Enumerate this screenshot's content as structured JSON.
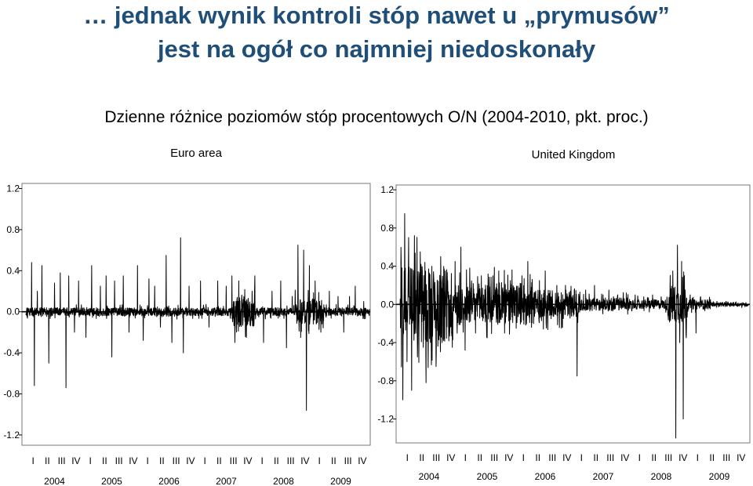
{
  "title": {
    "line1": "… jednak wynik kontroli stóp nawet u „prymusów”",
    "line2": "jest na ogół co najmniej niedoskonały"
  },
  "subtitle": "Dzienne różnice poziomów stóp procentowych O/N (2004-2010, pkt. proc.)",
  "colors": {
    "title": "#1f4e79",
    "series": "#000000",
    "axis": "#000000"
  },
  "chart_data": [
    {
      "type": "line",
      "title": "Euro area",
      "ylim": [
        -1.3,
        1.25
      ],
      "yticks": [
        1.2,
        0.8,
        0.4,
        0.0,
        -0.4,
        -0.8,
        -1.2
      ],
      "ytick_labels": [
        "1.2",
        "0.8",
        "0.4",
        "0.0",
        "-0.4",
        "-0.8",
        "-1.2"
      ],
      "xlim": [
        2004.0,
        2010.0
      ],
      "quarter_labels": [
        "I",
        "II",
        "III",
        "IV",
        "I",
        "II",
        "III",
        "IV",
        "I",
        "II",
        "III",
        "IV",
        "I",
        "II",
        "III",
        "IV",
        "I",
        "II",
        "III",
        "IV",
        "I",
        "II",
        "III",
        "IV"
      ],
      "year_labels": [
        "2004",
        "2005",
        "2006",
        "2007",
        "2008",
        "2009"
      ],
      "noise": {
        "base_amplitude": 0.04,
        "turbulent_periods": [
          [
            2007.6,
            2008.0,
            0.15
          ],
          [
            2008.7,
            2009.2,
            0.12
          ]
        ]
      },
      "spikes": [
        [
          2004.02,
          -0.05
        ],
        [
          2004.1,
          0.48
        ],
        [
          2004.15,
          -0.72
        ],
        [
          2004.2,
          0.2
        ],
        [
          2004.28,
          0.45
        ],
        [
          2004.4,
          -0.5
        ],
        [
          2004.5,
          0.28
        ],
        [
          2004.6,
          0.38
        ],
        [
          2004.7,
          -0.74
        ],
        [
          2004.75,
          0.35
        ],
        [
          2004.85,
          -0.2
        ],
        [
          2004.92,
          0.3
        ],
        [
          2005.05,
          -0.25
        ],
        [
          2005.15,
          0.45
        ],
        [
          2005.3,
          0.25
        ],
        [
          2005.4,
          0.35
        ],
        [
          2005.5,
          -0.44
        ],
        [
          2005.55,
          0.3
        ],
        [
          2005.7,
          0.35
        ],
        [
          2005.8,
          -0.2
        ],
        [
          2005.95,
          0.45
        ],
        [
          2006.05,
          -0.28
        ],
        [
          2006.15,
          0.32
        ],
        [
          2006.25,
          0.25
        ],
        [
          2006.35,
          -0.15
        ],
        [
          2006.45,
          0.55
        ],
        [
          2006.55,
          -0.3
        ],
        [
          2006.7,
          0.72
        ],
        [
          2006.75,
          -0.4
        ],
        [
          2006.85,
          0.25
        ],
        [
          2007.05,
          0.3
        ],
        [
          2007.2,
          -0.15
        ],
        [
          2007.35,
          0.3
        ],
        [
          2007.5,
          0.25
        ],
        [
          2007.6,
          0.35
        ],
        [
          2007.65,
          -0.3
        ],
        [
          2007.72,
          0.3
        ],
        [
          2007.85,
          -0.25
        ],
        [
          2007.95,
          0.2
        ],
        [
          2008.0,
          0.35
        ],
        [
          2008.15,
          -0.3
        ],
        [
          2008.3,
          0.2
        ],
        [
          2008.45,
          0.3
        ],
        [
          2008.55,
          -0.35
        ],
        [
          2008.65,
          0.15
        ],
        [
          2008.75,
          0.65
        ],
        [
          2008.8,
          -0.25
        ],
        [
          2008.85,
          0.6
        ],
        [
          2008.9,
          -0.96
        ],
        [
          2008.95,
          0.45
        ],
        [
          2009.05,
          0.3
        ],
        [
          2009.15,
          -0.2
        ],
        [
          2009.3,
          0.2
        ],
        [
          2009.45,
          0.15
        ],
        [
          2009.55,
          -0.2
        ],
        [
          2009.65,
          0.15
        ],
        [
          2009.75,
          0.25
        ],
        [
          2009.9,
          0.1
        ]
      ]
    },
    {
      "type": "line",
      "title": "United Kingdom",
      "ylim": [
        -1.45,
        1.25
      ],
      "yticks": [
        1.2,
        0.8,
        0.4,
        0.0,
        -0.4,
        -0.8,
        -1.2
      ],
      "ytick_labels": [
        "1.2",
        "0.8",
        "0.4",
        "0.0",
        "-0.4",
        "-0.8",
        "-1.2"
      ],
      "xlim": [
        2004.0,
        2010.0
      ],
      "quarter_labels": [
        "I",
        "II",
        "III",
        "IV",
        "I",
        "II",
        "III",
        "IV",
        "I",
        "II",
        "III",
        "IV",
        "I",
        "II",
        "III",
        "IV",
        "I",
        "II",
        "III",
        "IV",
        "I",
        "II",
        "III",
        "IV"
      ],
      "year_labels": [
        "2004",
        "2005",
        "2006",
        "2007",
        "2008",
        "2009"
      ],
      "noise": {
        "base_amplitude": 0.02,
        "turbulent_periods": [
          [
            2004.0,
            2004.9,
            0.4
          ],
          [
            2004.9,
            2006.4,
            0.22
          ],
          [
            2006.4,
            2007.1,
            0.15
          ],
          [
            2007.1,
            2008.0,
            0.07
          ],
          [
            2008.0,
            2008.6,
            0.05
          ],
          [
            2008.6,
            2008.95,
            0.2
          ],
          [
            2008.95,
            2009.35,
            0.05
          ]
        ]
      },
      "spikes": [
        [
          2004.02,
          0.45
        ],
        [
          2004.05,
          -1.0
        ],
        [
          2004.08,
          0.95
        ],
        [
          2004.12,
          -0.6
        ],
        [
          2004.15,
          0.7
        ],
        [
          2004.2,
          -0.9
        ],
        [
          2004.25,
          0.72
        ],
        [
          2004.3,
          -0.55
        ],
        [
          2004.35,
          0.55
        ],
        [
          2004.4,
          -0.45
        ],
        [
          2004.45,
          -0.82
        ],
        [
          2004.55,
          0.4
        ],
        [
          2004.62,
          -0.65
        ],
        [
          2004.7,
          0.5
        ],
        [
          2004.78,
          0.35
        ],
        [
          2004.9,
          -0.45
        ],
        [
          2004.95,
          0.45
        ],
        [
          2005.05,
          0.6
        ],
        [
          2005.12,
          -0.48
        ],
        [
          2005.2,
          0.38
        ],
        [
          2005.3,
          -0.3
        ],
        [
          2005.4,
          0.3
        ],
        [
          2005.5,
          -0.35
        ],
        [
          2005.6,
          0.3
        ],
        [
          2005.7,
          0.35
        ],
        [
          2005.8,
          -0.3
        ],
        [
          2005.9,
          0.25
        ],
        [
          2006.0,
          -0.25
        ],
        [
          2006.1,
          0.3
        ],
        [
          2006.2,
          0.45
        ],
        [
          2006.3,
          -0.2
        ],
        [
          2006.4,
          0.25
        ],
        [
          2006.5,
          0.35
        ],
        [
          2006.6,
          -0.15
        ],
        [
          2006.7,
          0.2
        ],
        [
          2006.78,
          -0.25
        ],
        [
          2006.85,
          0.2
        ],
        [
          2007.0,
          0.15
        ],
        [
          2007.05,
          -0.75
        ],
        [
          2007.2,
          0.15
        ],
        [
          2007.35,
          0.2
        ],
        [
          2007.5,
          0.1
        ],
        [
          2007.6,
          0.15
        ],
        [
          2007.75,
          0.1
        ],
        [
          2007.9,
          0.12
        ],
        [
          2008.05,
          0.1
        ],
        [
          2008.2,
          0.08
        ],
        [
          2008.35,
          0.1
        ],
        [
          2008.5,
          0.08
        ],
        [
          2008.7,
          0.35
        ],
        [
          2008.75,
          -1.4
        ],
        [
          2008.78,
          0.62
        ],
        [
          2008.82,
          -0.4
        ],
        [
          2008.85,
          0.45
        ],
        [
          2008.88,
          -1.2
        ],
        [
          2008.9,
          0.3
        ],
        [
          2008.93,
          -0.35
        ],
        [
          2009.0,
          0.1
        ],
        [
          2009.1,
          -0.3
        ],
        [
          2009.18,
          0.08
        ],
        [
          2009.3,
          0.05
        ]
      ]
    }
  ]
}
